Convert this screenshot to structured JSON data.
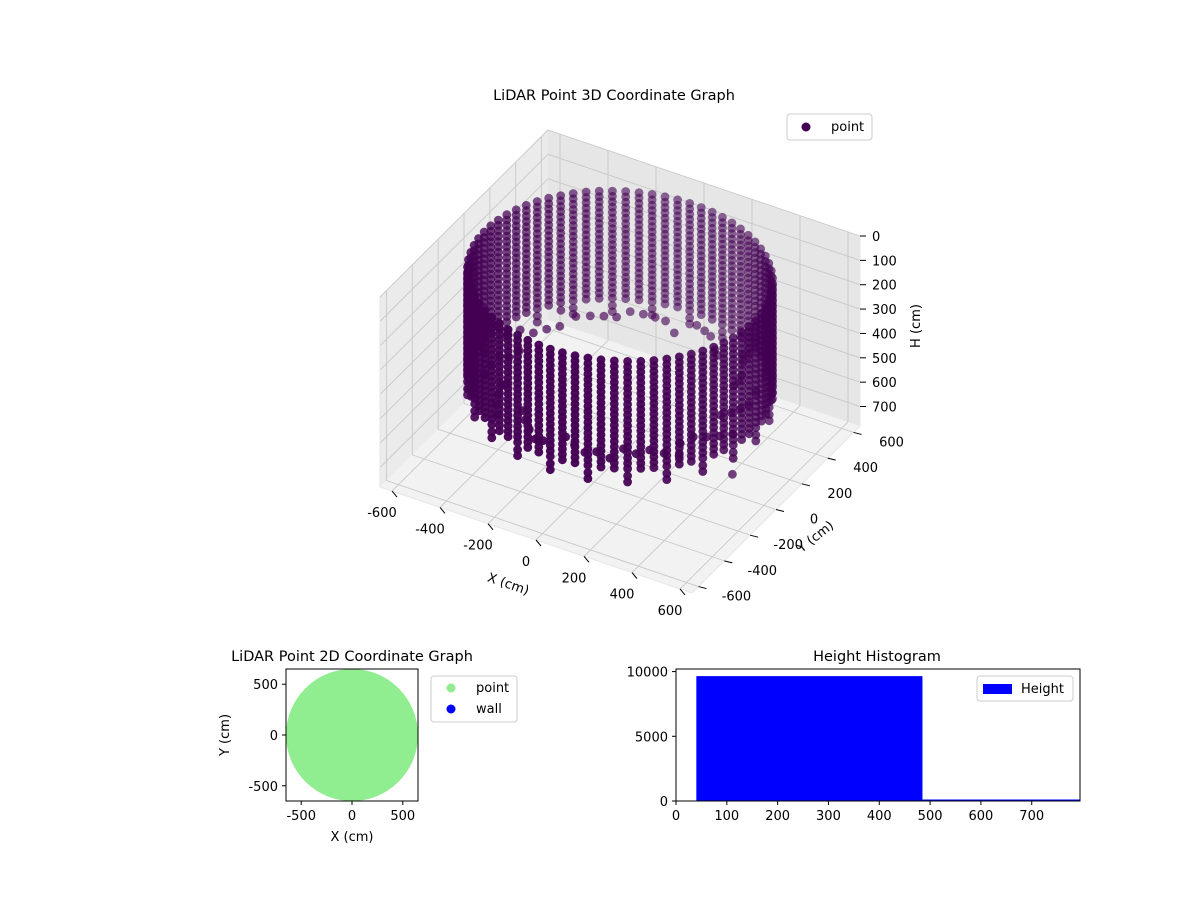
{
  "chart_data": [
    {
      "type": "scatter3d",
      "title": "LiDAR Point 3D Coordinate Graph",
      "xlabel": "X (cm)",
      "ylabel": "Y (cm)",
      "zlabel": "H (cm)",
      "xlim": [
        -650,
        650
      ],
      "ylim": [
        -650,
        650
      ],
      "zlim": [
        0,
        780
      ],
      "z_inverted": true,
      "x_ticks": [
        "-600",
        "-400",
        "-200",
        "0",
        "200",
        "400",
        "600"
      ],
      "y_ticks": [
        "-600",
        "-400",
        "-200",
        "0",
        "200",
        "400",
        "600"
      ],
      "z_ticks": [
        "0",
        "100",
        "200",
        "300",
        "400",
        "500",
        "600",
        "700"
      ],
      "grid": true,
      "legend": {
        "placement": "top-right",
        "entries": [
          {
            "label": "point",
            "color": "#440154"
          }
        ]
      },
      "series": [
        {
          "name": "point",
          "color": "#440154",
          "description_of_shape": "cylindrical wall scan",
          "radius": 560,
          "h_min": 40,
          "h_max": 485,
          "angular_columns": 72,
          "outlier": {
            "x": 420,
            "y": 90,
            "h": 760
          }
        }
      ]
    },
    {
      "type": "scatter",
      "title": "LiDAR Point 2D Coordinate Graph",
      "xlabel": "X (cm)",
      "ylabel": "Y (cm)",
      "xlim": [
        -650,
        650
      ],
      "ylim": [
        -650,
        650
      ],
      "x_ticks": [
        "-500",
        "0",
        "500"
      ],
      "y_ticks": [
        "-500",
        "0",
        "500"
      ],
      "legend": {
        "placement": "outside-right",
        "entries": [
          {
            "label": "point",
            "color": "#90ee90"
          },
          {
            "label": "wall",
            "color": "#0000ff"
          }
        ]
      },
      "series": [
        {
          "name": "point",
          "color": "#90ee90",
          "shape": "filled disc",
          "radius": 650
        },
        {
          "name": "wall",
          "color": "#0000ff",
          "points": []
        }
      ]
    },
    {
      "type": "bar",
      "title": "Height Histogram",
      "xlim": [
        0,
        795
      ],
      "ylim": [
        0,
        10200
      ],
      "x_ticks": [
        "0",
        "100",
        "200",
        "300",
        "400",
        "500",
        "600",
        "700"
      ],
      "y_ticks": [
        "0",
        "5000",
        "10000"
      ],
      "legend": {
        "placement": "top-right",
        "entries": [
          {
            "label": "Height",
            "color": "#0000ff"
          }
        ]
      },
      "series": [
        {
          "name": "Height",
          "color": "#0000ff",
          "bins": [
            {
              "start": 40,
              "end": 485,
              "count": 9650
            },
            {
              "start": 485,
              "end": 795,
              "count": 25
            }
          ]
        }
      ]
    }
  ]
}
